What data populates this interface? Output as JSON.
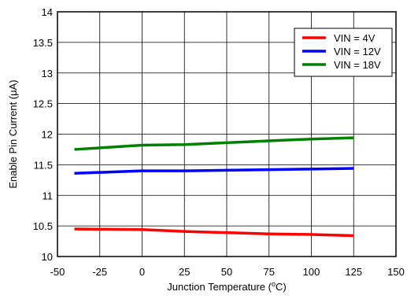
{
  "chart_data": {
    "type": "line",
    "title": "",
    "xlabel": "Junction Temperature (",
    "xlabel_sup": "o",
    "xlabel_tail": "C)",
    "ylabel": "Enable Pin Current (μA)",
    "xlim": [
      -50,
      150
    ],
    "ylim": [
      10,
      14
    ],
    "x_ticks": [
      -50,
      -25,
      0,
      25,
      50,
      75,
      100,
      125,
      150
    ],
    "x_tick_labels": [
      "-50",
      "-25",
      "0",
      "25",
      "50",
      "75",
      "100",
      "125",
      "150"
    ],
    "y_ticks": [
      10,
      10.5,
      11,
      11.5,
      12,
      12.5,
      13,
      13.5,
      14
    ],
    "y_tick_labels": [
      "10",
      "10.5",
      "11",
      "11.5",
      "12",
      "12.5",
      "13",
      "13.5",
      "14"
    ],
    "grid": true,
    "legend_position": "top-right",
    "series": [
      {
        "name": "VIN = 4V",
        "color": "#ff0000",
        "x": [
          -40,
          0,
          25,
          50,
          75,
          100,
          125
        ],
        "values": [
          10.45,
          10.44,
          10.41,
          10.39,
          10.37,
          10.36,
          10.34
        ]
      },
      {
        "name": "VIN = 12V",
        "color": "#0000ff",
        "x": [
          -40,
          0,
          25,
          50,
          75,
          100,
          125
        ],
        "values": [
          11.36,
          11.4,
          11.4,
          11.41,
          11.42,
          11.43,
          11.44
        ]
      },
      {
        "name": "VIN = 18V",
        "color": "#008000",
        "x": [
          -40,
          0,
          25,
          50,
          75,
          100,
          125
        ],
        "values": [
          11.75,
          11.82,
          11.83,
          11.86,
          11.89,
          11.92,
          11.94
        ]
      }
    ]
  }
}
